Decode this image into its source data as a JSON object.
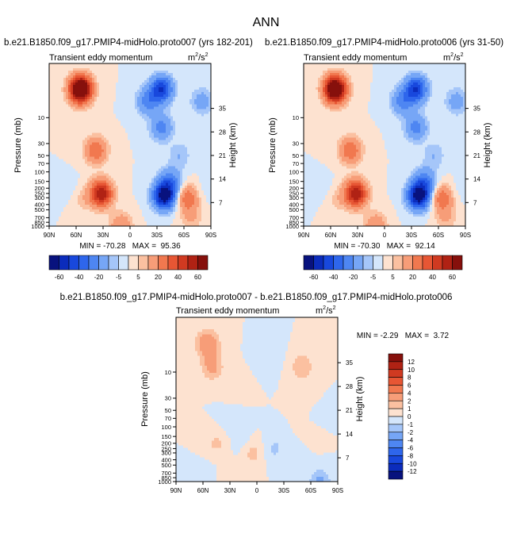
{
  "page_title": "ANN",
  "chart_data": [
    {
      "type": "heatmap",
      "title": "b.e21.B1850.f09_g17.PMIP4-midHolo.proto007 (yrs 182-201)",
      "subtitle": "Transient eddy momentum",
      "units": "m²/s²",
      "units_base": "m",
      "units_mid": "2",
      "units_slash": "/s",
      "units_exp": "2",
      "ylabel": "Pressure (mb)",
      "ylabel_right": "Height (km)",
      "x_ticks": [
        "90N",
        "60N",
        "30N",
        "0",
        "30S",
        "60S",
        "90S"
      ],
      "y_ticks": [
        "10",
        "30",
        "50",
        "70",
        "100",
        "150",
        "200",
        "250",
        "300",
        "400",
        "500",
        "700",
        "850",
        "1000"
      ],
      "y_ticks_right": [
        "35",
        "28",
        "21",
        "14",
        "7"
      ],
      "stats": "MIN = -70.28   MAX =  95.36",
      "min": -70.28,
      "max": 95.36,
      "features": [
        {
          "lat": 55,
          "p": 3,
          "value": 95.36
        },
        {
          "lat": 38,
          "p": 40,
          "value": 30
        },
        {
          "lat": 32,
          "p": 250,
          "value": 60
        },
        {
          "lat": 54,
          "p": 300,
          "value": 10
        },
        {
          "lat": 10,
          "p": 1000,
          "value": 20
        },
        {
          "lat": 60,
          "p": 250,
          "value": -5
        },
        {
          "lat": -20,
          "p": 5,
          "value": -25
        },
        {
          "lat": -35,
          "p": 3,
          "value": -50
        },
        {
          "lat": -35,
          "p": 15,
          "value": -25
        },
        {
          "lat": -38,
          "p": 275,
          "value": -70.28
        },
        {
          "lat": -45,
          "p": 150,
          "value": -25
        },
        {
          "lat": -55,
          "p": 50,
          "value": -10
        },
        {
          "lat": -65,
          "p": 300,
          "value": 30
        },
        {
          "lat": -68,
          "p": 700,
          "value": 10
        },
        {
          "lat": -75,
          "p": 250,
          "value": -5
        },
        {
          "lat": -80,
          "p": 5,
          "value": -15
        }
      ]
    },
    {
      "type": "heatmap",
      "title": "b.e21.B1850.f09_g17.PMIP4-midHolo.proto006 (yrs 31-50)",
      "subtitle": "Transient eddy momentum",
      "units": "m²/s²",
      "units_base": "m",
      "units_mid": "2",
      "units_slash": "/s",
      "units_exp": "2",
      "ylabel": "Pressure (mb)",
      "ylabel_right": "Height (km)",
      "x_ticks": [
        "90N",
        "60N",
        "30N",
        "0",
        "30S",
        "60S",
        "90S"
      ],
      "y_ticks": [
        "10",
        "30",
        "50",
        "70",
        "100",
        "150",
        "200",
        "250",
        "300",
        "400",
        "500",
        "700",
        "850",
        "1000"
      ],
      "y_ticks_right": [
        "35",
        "28",
        "21",
        "14",
        "7"
      ],
      "stats": "MIN = -70.30   MAX =  92.14",
      "min": -70.3,
      "max": 92.14,
      "features": [
        {
          "lat": 55,
          "p": 3,
          "value": 92.14
        },
        {
          "lat": 38,
          "p": 40,
          "value": 30
        },
        {
          "lat": 32,
          "p": 250,
          "value": 60
        },
        {
          "lat": 54,
          "p": 300,
          "value": 10
        },
        {
          "lat": 10,
          "p": 1000,
          "value": 20
        },
        {
          "lat": 60,
          "p": 250,
          "value": -5
        },
        {
          "lat": -20,
          "p": 5,
          "value": -25
        },
        {
          "lat": -35,
          "p": 3,
          "value": -50
        },
        {
          "lat": -35,
          "p": 15,
          "value": -25
        },
        {
          "lat": -38,
          "p": 275,
          "value": -70.3
        },
        {
          "lat": -45,
          "p": 150,
          "value": -25
        },
        {
          "lat": -55,
          "p": 50,
          "value": -10
        },
        {
          "lat": -65,
          "p": 300,
          "value": 30
        },
        {
          "lat": -68,
          "p": 700,
          "value": 10
        },
        {
          "lat": -75,
          "p": 250,
          "value": -5
        },
        {
          "lat": -80,
          "p": 5,
          "value": -15
        }
      ]
    },
    {
      "type": "heatmap",
      "title": "b.e21.B1850.f09_g17.PMIP4-midHolo.proto007 - b.e21.B1850.f09_g17.PMIP4-midHolo.proto006",
      "subtitle": "Transient eddy momentum",
      "units": "m²/s²",
      "units_base": "m",
      "units_mid": "2",
      "units_slash": "/s",
      "units_exp": "2",
      "ylabel": "Pressure (mb)",
      "ylabel_right": "Height (km)",
      "x_ticks": [
        "90N",
        "60N",
        "30N",
        "0",
        "30S",
        "60S",
        "90S"
      ],
      "y_ticks": [
        "10",
        "30",
        "50",
        "70",
        "100",
        "150",
        "200",
        "250",
        "300",
        "400",
        "500",
        "700",
        "850",
        "1000"
      ],
      "y_ticks_right": [
        "35",
        "28",
        "21",
        "14",
        "7"
      ],
      "stats": "MIN = -2.29   MAX =  3.72",
      "min": -2.29,
      "max": 3.72,
      "features": [
        {
          "lat": 55,
          "p": 3,
          "value": 3.72
        },
        {
          "lat": 50,
          "p": 8,
          "value": 2.5
        },
        {
          "lat": 25,
          "p": 20,
          "value": 0.6
        },
        {
          "lat": -50,
          "p": 8,
          "value": 2
        },
        {
          "lat": -55,
          "p": 30,
          "value": 0.7
        },
        {
          "lat": -15,
          "p": 5,
          "value": -0.8
        },
        {
          "lat": 28,
          "p": 80,
          "value": -0.8
        },
        {
          "lat": 15,
          "p": 200,
          "value": -0.6
        },
        {
          "lat": -20,
          "p": 250,
          "value": -1.2
        },
        {
          "lat": -70,
          "p": 60,
          "value": -0.6
        },
        {
          "lat": -55,
          "p": 200,
          "value": -0.5
        },
        {
          "lat": 45,
          "p": 200,
          "value": 1.2
        },
        {
          "lat": 5,
          "p": 300,
          "value": 1.5
        },
        {
          "lat": -60,
          "p": 150,
          "value": 1
        },
        {
          "lat": -70,
          "p": 1000,
          "value": -2.29
        },
        {
          "lat": 60,
          "p": 900,
          "value": -1
        },
        {
          "lat": 30,
          "p": 1000,
          "value": 1
        }
      ]
    }
  ],
  "colorbar_top": {
    "labels": [
      "-60",
      "-40",
      "-20",
      "-5",
      "5",
      "20",
      "40",
      "60"
    ],
    "levels": [
      -70,
      -60,
      -50,
      -40,
      -30,
      -20,
      -10,
      -5,
      0,
      5,
      10,
      20,
      30,
      40,
      50,
      60,
      70
    ],
    "colors": [
      "#08127e",
      "#0b2cbc",
      "#1848dd",
      "#2e66ec",
      "#4e86f2",
      "#76a6f6",
      "#a5c6f9",
      "#d4e6fb",
      "#fde2d0",
      "#fbc0a0",
      "#f79d78",
      "#f1784f",
      "#e75634",
      "#d03a21",
      "#b02214",
      "#86100c"
    ]
  },
  "colorbar_diff": {
    "labels": [
      "12",
      "10",
      "8",
      "6",
      "4",
      "2",
      "1",
      "0",
      "-1",
      "-2",
      "-4",
      "-6",
      "-8",
      "-10",
      "-12"
    ],
    "levels": [
      -14,
      -12,
      -10,
      -8,
      -6,
      -4,
      -2,
      -1,
      0,
      1,
      2,
      4,
      6,
      8,
      10,
      12,
      14
    ],
    "colors": [
      "#08127e",
      "#0b2cbc",
      "#1848dd",
      "#2e66ec",
      "#4e86f2",
      "#76a6f6",
      "#a5c6f9",
      "#d4e6fb",
      "#fde2d0",
      "#fbc0a0",
      "#f79d78",
      "#f1784f",
      "#e75634",
      "#d03a21",
      "#b02214",
      "#86100c"
    ]
  }
}
